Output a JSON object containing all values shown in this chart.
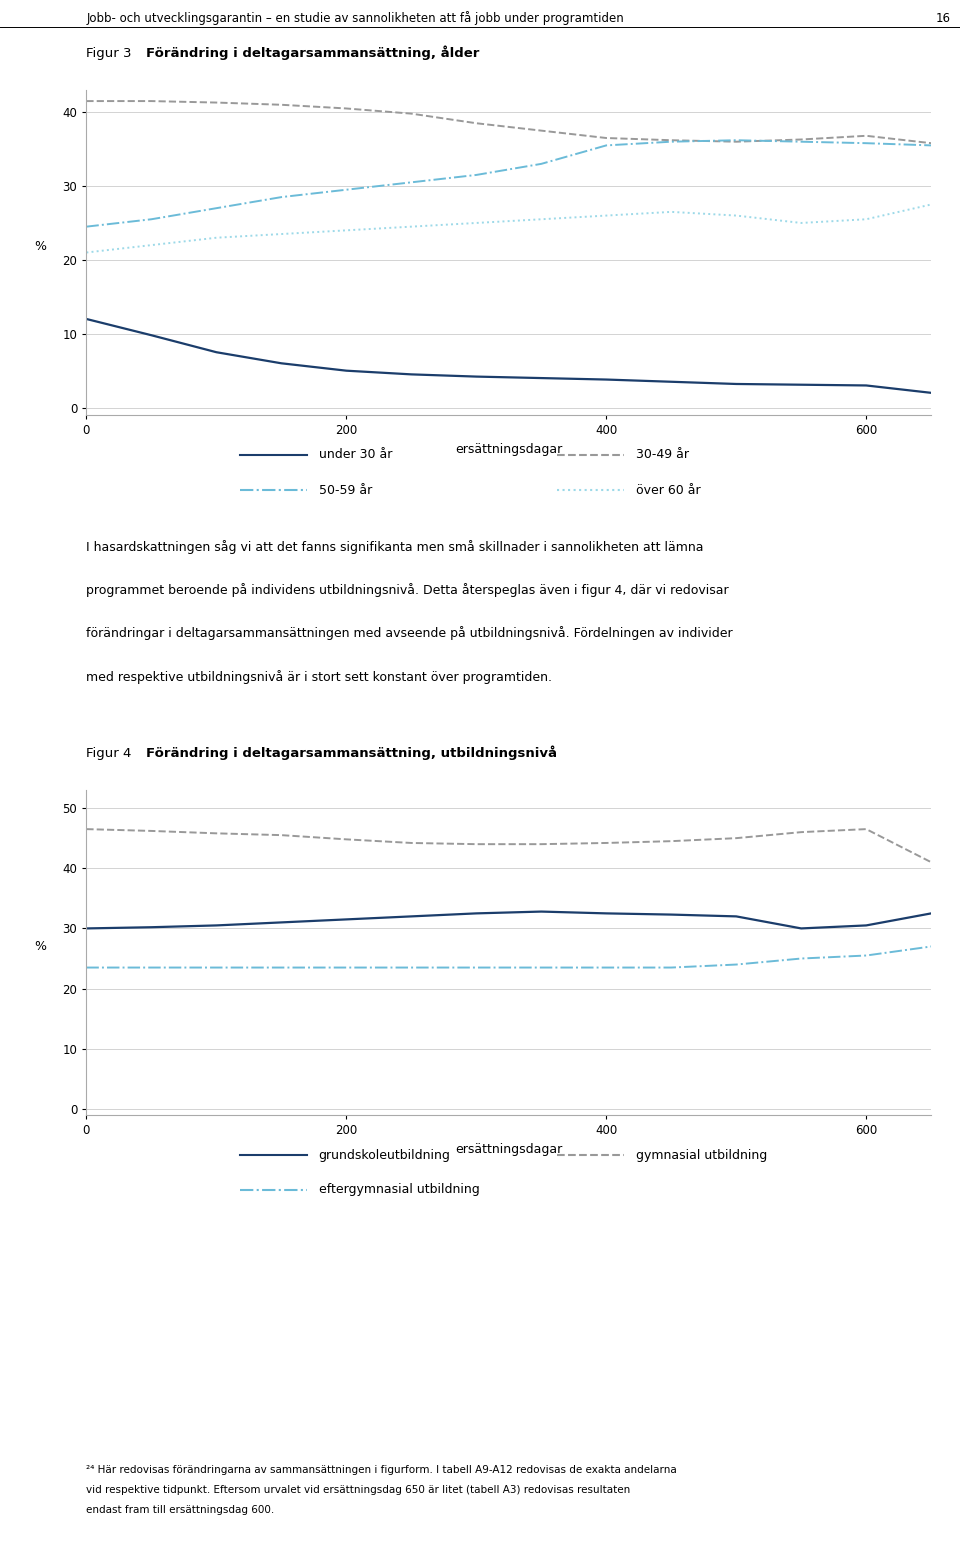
{
  "header": "Jobb- och utvecklingsgarantin – en studie av sannolikheten att få jobb under programtiden",
  "page_number": "16",
  "xlabel": "ersättningsdagar",
  "ylabel": "%",
  "fig3_title_plain": "Figur 3 ",
  "fig3_title_bold": "Förändring i deltagarsammansättning, ålder",
  "fig4_title_plain": "Figur 4 ",
  "fig4_title_bold": "Förändring i deltagarsammansättning, utbildningsnivå",
  "fig3_xlim": [
    0,
    650
  ],
  "fig3_ylim": [
    -1,
    43
  ],
  "fig3_xticks": [
    0,
    200,
    400,
    600
  ],
  "fig3_yticks": [
    0,
    10,
    20,
    30,
    40
  ],
  "fig4_xlim": [
    0,
    650
  ],
  "fig4_ylim": [
    -1,
    53
  ],
  "fig4_xticks": [
    0,
    200,
    400,
    600
  ],
  "fig4_yticks": [
    0,
    10,
    20,
    30,
    40,
    50
  ],
  "fig3_lines": [
    {
      "x": [
        0,
        50,
        100,
        150,
        200,
        250,
        300,
        350,
        400,
        450,
        500,
        550,
        600,
        650
      ],
      "y": [
        12.0,
        9.8,
        7.5,
        6.0,
        5.0,
        4.5,
        4.2,
        4.0,
        3.8,
        3.5,
        3.2,
        3.1,
        3.0,
        2.0
      ],
      "color": "#1b3d6b",
      "linestyle": "solid",
      "linewidth": 1.6,
      "label": "under 30 år"
    },
    {
      "x": [
        0,
        50,
        100,
        150,
        200,
        250,
        300,
        350,
        400,
        450,
        500,
        550,
        600,
        650
      ],
      "y": [
        41.5,
        41.5,
        41.3,
        41.0,
        40.5,
        39.8,
        38.5,
        37.5,
        36.5,
        36.2,
        36.0,
        36.3,
        36.8,
        35.8
      ],
      "color": "#999999",
      "linestyle": "dashed",
      "linewidth": 1.4,
      "label": "30-49 år"
    },
    {
      "x": [
        0,
        50,
        100,
        150,
        200,
        250,
        300,
        350,
        400,
        450,
        500,
        550,
        600,
        650
      ],
      "y": [
        24.5,
        25.5,
        27.0,
        28.5,
        29.5,
        30.5,
        31.5,
        33.0,
        35.5,
        36.0,
        36.2,
        36.0,
        35.8,
        35.5
      ],
      "color": "#6bbbd8",
      "linestyle": "dashdot",
      "linewidth": 1.4,
      "label": "50-59 år"
    },
    {
      "x": [
        0,
        50,
        100,
        150,
        200,
        250,
        300,
        350,
        400,
        450,
        500,
        550,
        600,
        650
      ],
      "y": [
        21.0,
        22.0,
        23.0,
        23.5,
        24.0,
        24.5,
        25.0,
        25.5,
        26.0,
        26.5,
        26.0,
        25.0,
        25.5,
        27.5
      ],
      "color": "#9cd9e8",
      "linestyle": "dotted",
      "linewidth": 1.4,
      "label": "över 60 år"
    }
  ],
  "fig3_legend": [
    {
      "label": "under 30 år",
      "color": "#1b3d6b",
      "linestyle": "solid"
    },
    {
      "label": "30-49 år",
      "color": "#999999",
      "linestyle": "dashed"
    },
    {
      "label": "50-59 år",
      "color": "#6bbbd8",
      "linestyle": "dashdot"
    },
    {
      "label": "över 60 år",
      "color": "#9cd9e8",
      "linestyle": "dotted"
    }
  ],
  "fig4_lines": [
    {
      "x": [
        0,
        50,
        100,
        150,
        200,
        250,
        300,
        350,
        400,
        450,
        500,
        550,
        600,
        650
      ],
      "y": [
        30.0,
        30.2,
        30.5,
        31.0,
        31.5,
        32.0,
        32.5,
        32.8,
        32.5,
        32.3,
        32.0,
        30.0,
        30.5,
        32.5
      ],
      "color": "#1b3d6b",
      "linestyle": "solid",
      "linewidth": 1.6,
      "label": "grundskoleutbildning"
    },
    {
      "x": [
        0,
        50,
        100,
        150,
        200,
        250,
        300,
        350,
        400,
        450,
        500,
        550,
        600,
        650
      ],
      "y": [
        46.5,
        46.2,
        45.8,
        45.5,
        44.8,
        44.2,
        44.0,
        44.0,
        44.2,
        44.5,
        45.0,
        46.0,
        46.5,
        41.0
      ],
      "color": "#999999",
      "linestyle": "dashed",
      "linewidth": 1.4,
      "label": "gymnasial utbildning"
    },
    {
      "x": [
        0,
        50,
        100,
        150,
        200,
        250,
        300,
        350,
        400,
        450,
        500,
        550,
        600,
        650
      ],
      "y": [
        23.5,
        23.5,
        23.5,
        23.5,
        23.5,
        23.5,
        23.5,
        23.5,
        23.5,
        23.5,
        24.0,
        25.0,
        25.5,
        27.0
      ],
      "color": "#6bbbd8",
      "linestyle": "dashdot",
      "linewidth": 1.4,
      "label": "eftergymnasial utbildning"
    }
  ],
  "fig4_legend": [
    {
      "label": "grundskoleutbildning",
      "color": "#1b3d6b",
      "linestyle": "solid"
    },
    {
      "label": "gymnasial utbildning",
      "color": "#999999",
      "linestyle": "dashed"
    },
    {
      "label": "eftergymnasial utbildning",
      "color": "#6bbbd8",
      "linestyle": "dashdot"
    }
  ],
  "body_lines": [
    "I hasardskattningen såg vi att det fanns signifikanta men små skillnader i sannolikheten att lämna",
    "programmet beroende på individens utbildningsnivå. Detta återspeglas även i figur 4, där vi redovisar",
    "förändringar i deltagarsammansättningen med avseende på utbildningsnivå. Fördelningen av individer",
    "med respektive utbildningsnivå är i stort sett konstant över programtiden."
  ],
  "footnote_lines": [
    "²⁴ Här redovisas förändringarna av sammansättningen i figurform. I tabell A9-A12 redovisas de exakta andelarna vid respektive tidpunkt. Eftersom urvalet vid ersättningsdag 650 är litet (tabell A3) redovisas resultaten endast fram till ersättningsdag 600."
  ],
  "bg": "#ffffff",
  "grid_color": "#cccccc",
  "spine_color": "#aaaaaa"
}
